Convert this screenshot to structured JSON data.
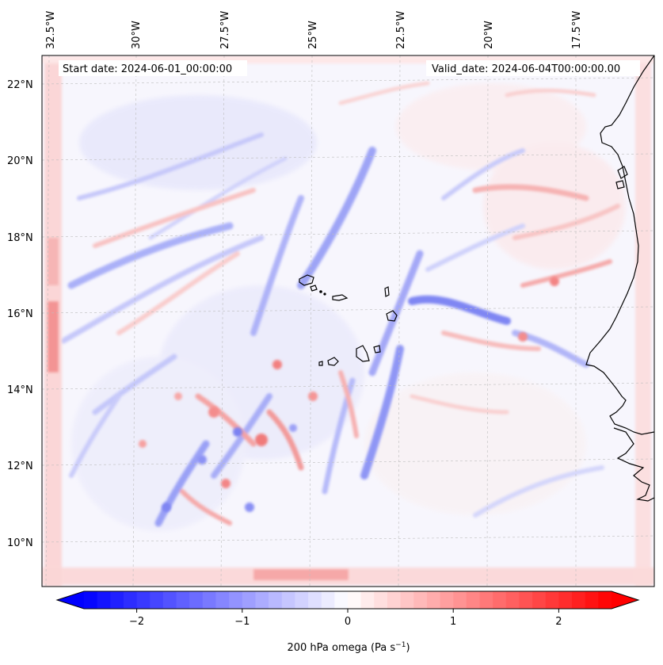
{
  "map": {
    "start_date": "Start date: 2024-06-01_00:00:00",
    "valid_date": "Valid_date: 2024-06-04T00:00:00.00",
    "lon_labels": [
      "32.5°W",
      "30°W",
      "27.5°W",
      "25°W",
      "22.5°W",
      "20°W",
      "17.5°W"
    ],
    "lat_labels": [
      "22°N",
      "20°N",
      "18°N",
      "16°N",
      "14°N",
      "12°N",
      "10°N"
    ],
    "extent": {
      "lon_min": -32.7,
      "lon_max": -15.1,
      "lat_min": 8.9,
      "lat_max": 22.8
    },
    "gridlines": true,
    "features": [
      "coastline",
      "Cape Verde islands",
      "West African coast"
    ]
  },
  "colorbar": {
    "label": "200 hPa omega (Pa s",
    "label_exp": "−1",
    "label_close": ")",
    "ticks": [
      "−2",
      "−1",
      "0",
      "1",
      "2"
    ],
    "tick_values": [
      -2,
      -1,
      0,
      1,
      2
    ],
    "range": [
      -2.5,
      2.5
    ],
    "extend": "both",
    "colormap": "bwr",
    "colors": {
      "low": "#0000ff",
      "mid": "#ffffff",
      "high": "#ff0000"
    }
  }
}
